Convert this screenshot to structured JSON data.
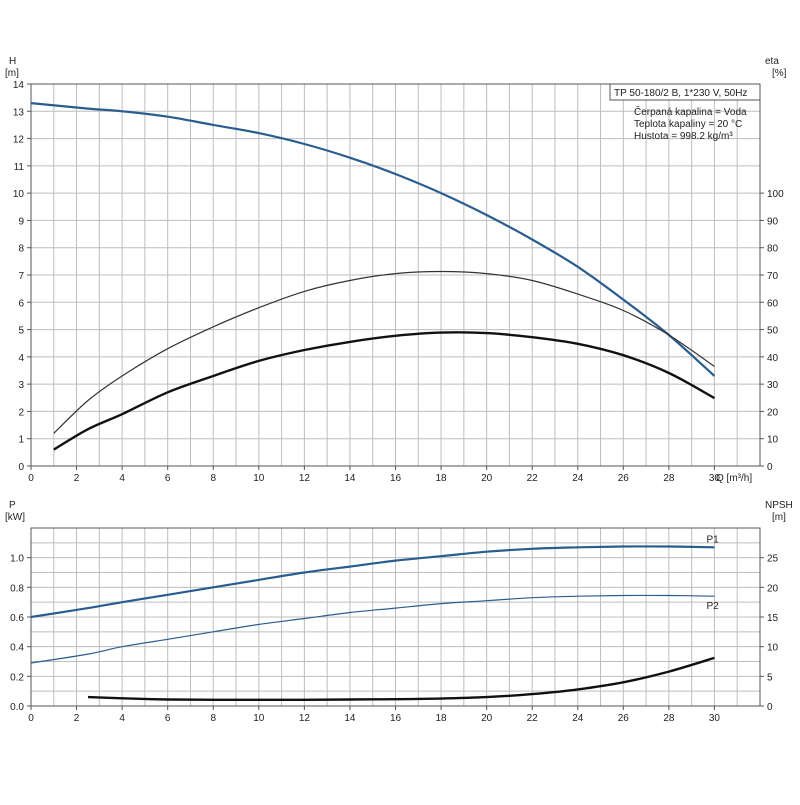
{
  "chart_data": [
    {
      "type": "line",
      "panel": "top",
      "xlabel": "Q [m³/h]",
      "x_ticks": [
        0,
        2,
        4,
        6,
        8,
        10,
        12,
        14,
        16,
        18,
        20,
        22,
        24,
        26,
        28,
        30
      ],
      "xlim": [
        0,
        32
      ],
      "left_axis": {
        "label_line1": "H",
        "label_line2": "[m]",
        "ylim": [
          0,
          14
        ],
        "ticks": [
          0,
          1,
          2,
          3,
          4,
          5,
          6,
          7,
          8,
          9,
          10,
          11,
          12,
          13,
          14
        ]
      },
      "right_axis": {
        "label_line1": "eta",
        "label_line2": "[%]",
        "ylim": [
          0,
          140
        ],
        "ticks": [
          0,
          10,
          20,
          30,
          40,
          50,
          60,
          70,
          80,
          90,
          100
        ]
      },
      "legend_title": "TP 50-180/2 B, 1*230 V, 50Hz",
      "legend_lines": [
        "Čerpaná kapalina = Voda",
        "Teplota kapaliny = 20 °C",
        "Hustota = 998.2 kg/m³"
      ],
      "series": [
        {
          "axis": "left",
          "color": "#2a5d8f",
          "width": 2.2,
          "x": [
            0,
            2.5,
            4,
            6,
            8,
            10,
            12,
            14,
            16,
            18,
            20,
            22,
            24,
            26,
            28,
            30
          ],
          "y": [
            13.3,
            13.1,
            13.0,
            12.8,
            12.5,
            12.2,
            11.8,
            11.3,
            10.7,
            10.0,
            9.2,
            8.3,
            7.3,
            6.1,
            4.8,
            3.3
          ]
        },
        {
          "axis": "right",
          "color": "#333333",
          "width": 1.2,
          "x": [
            1,
            2.5,
            4,
            6,
            8,
            10,
            12,
            14,
            16,
            18,
            20,
            22,
            24,
            26,
            28,
            30
          ],
          "y": [
            12,
            24,
            33,
            43,
            51,
            58,
            64,
            68,
            70.5,
            71.3,
            70.5,
            68,
            63,
            57,
            48,
            36.5
          ]
        },
        {
          "axis": "right",
          "color": "#111111",
          "width": 2.4,
          "x": [
            1,
            2.5,
            4,
            6,
            8,
            10,
            12,
            14,
            16,
            18,
            20,
            22,
            24,
            26,
            28,
            30
          ],
          "y": [
            6,
            13.5,
            19,
            27,
            33,
            38.5,
            42.5,
            45.5,
            47.7,
            48.9,
            48.7,
            47.2,
            44.8,
            40.6,
            34.1,
            24.9
          ]
        }
      ]
    },
    {
      "type": "line",
      "panel": "bottom",
      "x_ticks": [
        0,
        2,
        4,
        6,
        8,
        10,
        12,
        14,
        16,
        18,
        20,
        22,
        24,
        26,
        28,
        30
      ],
      "xlim": [
        0,
        32
      ],
      "left_axis": {
        "label_line1": "P",
        "label_line2": "[kW]",
        "ylim": [
          0,
          1.2
        ],
        "ticks": [
          "0.0",
          "0.2",
          "0.4",
          "0.6",
          "0.8",
          "1.0"
        ]
      },
      "right_axis": {
        "label_line1": "NPSH",
        "label_line2": "[m]",
        "ylim": [
          0,
          30
        ],
        "ticks": [
          0,
          5,
          10,
          15,
          20,
          25
        ]
      },
      "series": [
        {
          "name": "P1",
          "axis": "left",
          "color": "#2a5d8f",
          "width": 2.2,
          "x": [
            0,
            2.5,
            4,
            6,
            8,
            10,
            12,
            14,
            16,
            18,
            20,
            22,
            24,
            26,
            28,
            30
          ],
          "y": [
            0.6,
            0.66,
            0.7,
            0.75,
            0.8,
            0.85,
            0.9,
            0.94,
            0.98,
            1.01,
            1.04,
            1.06,
            1.07,
            1.075,
            1.075,
            1.07
          ]
        },
        {
          "name": "P2",
          "axis": "left",
          "color": "#2a5d8f",
          "width": 1.2,
          "x": [
            0,
            2.5,
            4,
            6,
            8,
            10,
            12,
            14,
            16,
            18,
            20,
            22,
            24,
            26,
            28,
            30
          ],
          "y": [
            0.29,
            0.35,
            0.4,
            0.45,
            0.5,
            0.55,
            0.59,
            0.63,
            0.66,
            0.69,
            0.71,
            0.73,
            0.74,
            0.745,
            0.745,
            0.74
          ]
        },
        {
          "axis": "right",
          "color": "#111111",
          "width": 2.4,
          "x": [
            2.5,
            4,
            6,
            8,
            10,
            12,
            14,
            16,
            18,
            20,
            22,
            24,
            26,
            28,
            30
          ],
          "y": [
            1.5,
            1.3,
            1.1,
            1.05,
            1.05,
            1.05,
            1.1,
            1.15,
            1.25,
            1.5,
            2.0,
            2.8,
            4.0,
            5.8,
            8.1
          ]
        }
      ]
    }
  ]
}
